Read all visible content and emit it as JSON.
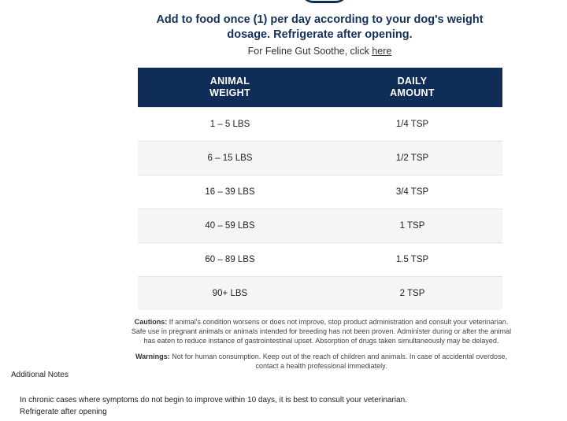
{
  "intro": {
    "main_text": "Add to food once (1) per day according to your dog's weight dosage. Refrigerate after opening.",
    "sub_prefix": "For Feline Gut Soothe, click ",
    "sub_link": "here"
  },
  "table": {
    "headers": [
      [
        "ANIMAL",
        "WEIGHT"
      ],
      [
        "DAILY",
        "AMOUNT"
      ]
    ],
    "rows": [
      [
        "1 – 5 LBS",
        "1/4 TSP"
      ],
      [
        "6 – 15 LBS",
        "1/2 TSP"
      ],
      [
        "16 – 39 LBS",
        "3/4 TSP"
      ],
      [
        "40 – 59 LBS",
        "1 TSP"
      ],
      [
        "60 – 89 LBS",
        "1.5 TSP"
      ],
      [
        "90+ LBS",
        "2 TSP"
      ]
    ]
  },
  "cautions": {
    "label": "Cautions:",
    "text": "If animal's condition worsens or does not improve, stop product administration and consult your veterinarian. Safe use in pregnant animals or animals intended for breeding has not been proven. Administer during or after the animal has eaten to reduce instance of gastrointestinal upset. Absorption of drugs taken simultaneously may be delayed."
  },
  "warnings": {
    "label": "Warnings:",
    "text": "Not for human consumption. Keep out of the reach of children and animals. In case of accidental overdose, contact a health professional immediately."
  },
  "additional_notes": {
    "title": "Additional Notes",
    "lines": [
      "In chronic cases where symptoms do not begin to improve within 10 days, it is best to consult your veterinarian.",
      "Refrigerate after opening"
    ]
  },
  "colors": {
    "header_navy": "#0f2d57",
    "intro_text": "#15305a",
    "alt_row": "#f5f5f5"
  }
}
